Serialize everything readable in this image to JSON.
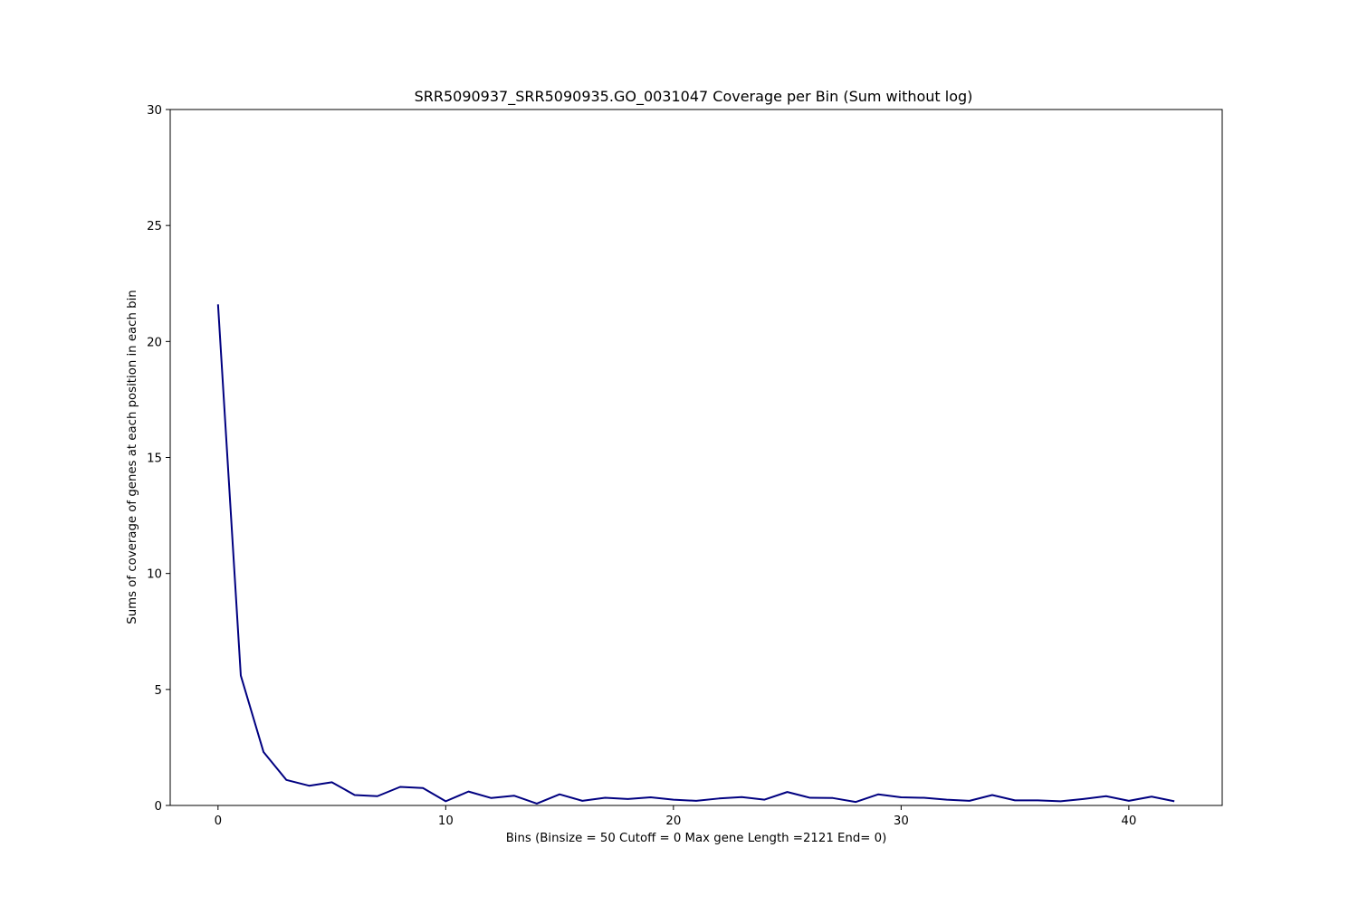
{
  "chart_data": {
    "type": "line",
    "title": "SRR5090937_SRR5090935.GO_0031047 Coverage per Bin (Sum without log)",
    "xlabel": "Bins  (Binsize = 50 Cutoff = 0 Max gene Length =2121 End= 0)",
    "ylabel": "Sums of coverage of genes at each position in each bin",
    "xlim": [
      -2.1,
      44.1
    ],
    "ylim": [
      0,
      30
    ],
    "xticks": [
      0,
      10,
      20,
      30,
      40
    ],
    "yticks": [
      0,
      5,
      10,
      15,
      20,
      25,
      30
    ],
    "grid": false,
    "line_color": "#000080",
    "series": [
      {
        "x": [
          0,
          1,
          2,
          3,
          4,
          5,
          6,
          7,
          8,
          9,
          10,
          11,
          12,
          13,
          14,
          15,
          16,
          17,
          18,
          19,
          20,
          21,
          22,
          23,
          24,
          25,
          26,
          27,
          28,
          29,
          30,
          31,
          32,
          33,
          34,
          35,
          36,
          37,
          38,
          39,
          40,
          41,
          42
        ],
        "values": [
          21.6,
          5.6,
          2.3,
          1.1,
          0.85,
          1.0,
          0.45,
          0.4,
          0.8,
          0.75,
          0.18,
          0.6,
          0.32,
          0.42,
          0.08,
          0.48,
          0.2,
          0.33,
          0.28,
          0.35,
          0.25,
          0.2,
          0.3,
          0.36,
          0.25,
          0.58,
          0.33,
          0.32,
          0.15,
          0.48,
          0.35,
          0.33,
          0.25,
          0.2,
          0.45,
          0.22,
          0.22,
          0.18,
          0.28,
          0.4,
          0.2,
          0.38,
          0.18
        ]
      }
    ]
  }
}
